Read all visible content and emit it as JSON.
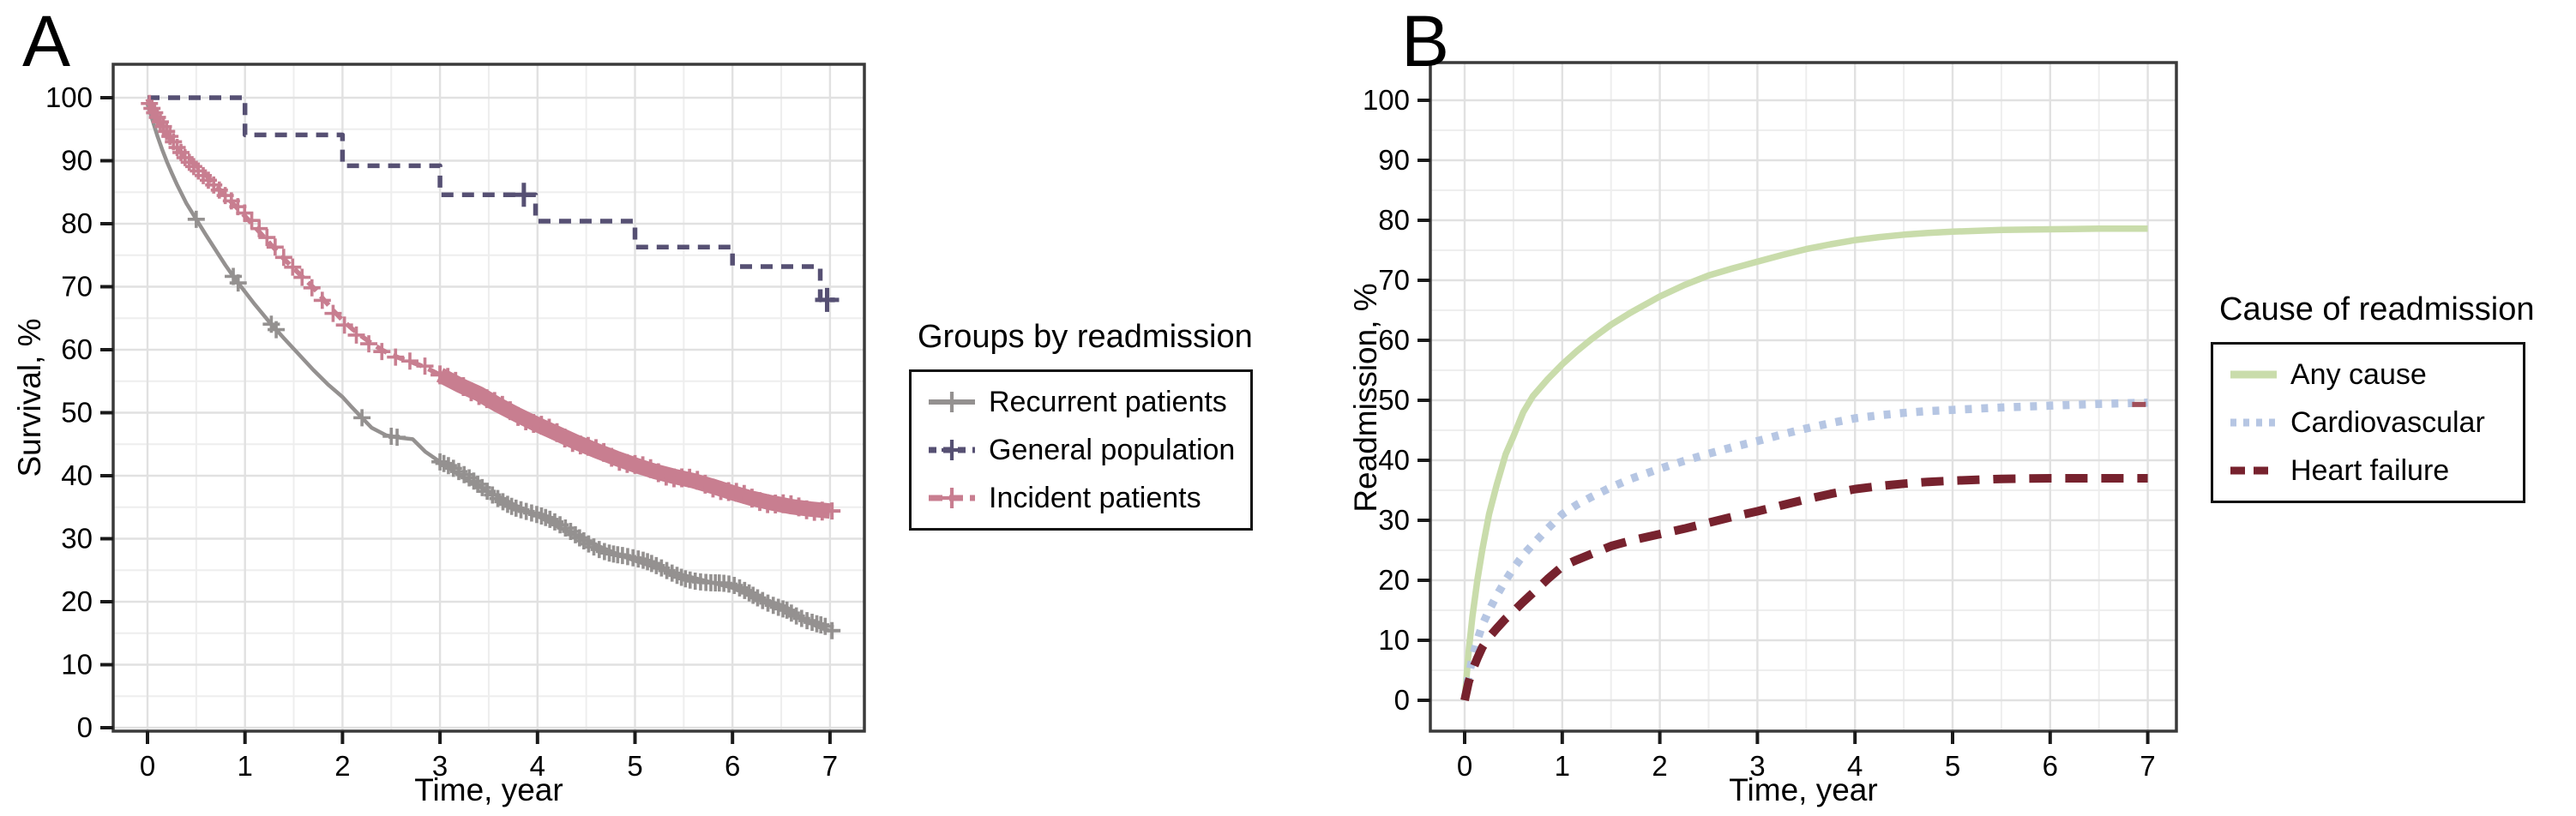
{
  "chart_data": [
    {
      "type": "line",
      "panel_label": "A",
      "title": "",
      "xlabel": "Time, year",
      "ylabel": "Survival, %",
      "xticks": [
        0,
        1,
        2,
        3,
        4,
        5,
        6,
        7
      ],
      "yticks": [
        0,
        10,
        20,
        30,
        40,
        50,
        60,
        70,
        80,
        90,
        100
      ],
      "xlim": [
        -0.35,
        7.35
      ],
      "ylim": [
        -0.5,
        105.5
      ],
      "grid": {
        "major": true,
        "minor": true,
        "minor_x_step": 0.5,
        "minor_y_step": 5
      },
      "legend": {
        "title": "Groups by readmission",
        "position": "right"
      },
      "series": [
        {
          "name": "Recurrent patients",
          "color": "#949190",
          "line_style": "solid",
          "line_width": 4.5,
          "dash_pattern": "",
          "swatch_dash": "",
          "marker": "plus",
          "step": false,
          "points": [
            [
              0,
              99
            ],
            [
              0.05,
              96.5
            ],
            [
              0.1,
              94
            ],
            [
              0.15,
              91.8
            ],
            [
              0.2,
              89.8
            ],
            [
              0.25,
              88
            ],
            [
              0.3,
              86.3
            ],
            [
              0.4,
              83.2
            ],
            [
              0.5,
              80.7
            ],
            [
              0.6,
              78.2
            ],
            [
              0.7,
              75.8
            ],
            [
              0.8,
              73.4
            ],
            [
              0.9,
              71.2
            ],
            [
              1,
              69.2
            ],
            [
              1.1,
              67.2
            ],
            [
              1.25,
              64.4
            ],
            [
              1.4,
              61.8
            ],
            [
              1.55,
              59.3
            ],
            [
              1.7,
              56.8
            ],
            [
              1.85,
              54.5
            ],
            [
              2,
              52.5
            ],
            [
              2.1,
              50.8
            ],
            [
              2.2,
              49.2
            ],
            [
              2.3,
              47.6
            ],
            [
              2.45,
              46.4
            ],
            [
              2.6,
              46
            ],
            [
              2.72,
              45.8
            ],
            [
              2.85,
              43.8
            ],
            [
              3,
              42.2
            ],
            [
              3.2,
              40.1
            ],
            [
              3.4,
              38.3
            ],
            [
              3.6,
              36.7
            ],
            [
              3.8,
              35.1
            ],
            [
              4,
              33.6
            ],
            [
              4.2,
              32
            ],
            [
              4.4,
              30.5
            ],
            [
              4.6,
              29
            ],
            [
              4.8,
              27.7
            ],
            [
              5,
              26.5
            ],
            [
              5.2,
              25.5
            ],
            [
              5.4,
              24.6
            ],
            [
              5.6,
              23.8
            ],
            [
              5.8,
              23
            ],
            [
              6,
              22.2
            ],
            [
              6.15,
              21.2
            ],
            [
              6.3,
              20.4
            ],
            [
              6.45,
              19.7
            ],
            [
              6.55,
              19.2
            ],
            [
              6.65,
              18
            ],
            [
              6.75,
              17
            ],
            [
              6.85,
              16.2
            ],
            [
              6.95,
              15.6
            ],
            [
              7,
              15.4
            ]
          ],
          "censor_marks": [
            0.5,
            0.88,
            0.93,
            1.27,
            1.32,
            2.2,
            2.5,
            2.56
          ],
          "censor_band": {
            "from": 3.0,
            "to": 6.98,
            "step": 0.04
          },
          "tail_mark": 7.02
        },
        {
          "name": "General population",
          "color": "#565073",
          "line_style": "dashed",
          "line_width": 5.5,
          "dash_pattern": "14 10",
          "swatch_dash": "9 8",
          "marker": "plus",
          "step": true,
          "points": [
            [
              0,
              100
            ],
            [
              1,
              94.1
            ],
            [
              2,
              89.2
            ],
            [
              3,
              84.6
            ],
            [
              3.98,
              80.4
            ],
            [
              5,
              76.3
            ],
            [
              6,
              73.2
            ],
            [
              6.9,
              67.9
            ],
            [
              7.05,
              67.9
            ]
          ],
          "censor_marks": [
            3.86,
            6.97
          ]
        },
        {
          "name": "Incident patients",
          "color": "#c87e90",
          "line_style": "dashed-then-thick",
          "line_width": 5.5,
          "thick_width": 18,
          "thick_from_x": 3,
          "dash_pattern": "14 8",
          "swatch_dash": "16 8",
          "marker": "plus",
          "step": false,
          "points": [
            [
              0,
              99.8
            ],
            [
              0.05,
              98
            ],
            [
              0.1,
              96.5
            ],
            [
              0.15,
              95.2
            ],
            [
              0.2,
              94.1
            ],
            [
              0.25,
              93.1
            ],
            [
              0.3,
              92.1
            ],
            [
              0.4,
              90.5
            ],
            [
              0.5,
              89.2
            ],
            [
              0.6,
              87.7
            ],
            [
              0.7,
              86.1
            ],
            [
              0.8,
              84.4
            ],
            [
              0.9,
              82.8
            ],
            [
              1,
              81.2
            ],
            [
              1.1,
              79.5
            ],
            [
              1.2,
              77.8
            ],
            [
              1.3,
              76.1
            ],
            [
              1.4,
              74.4
            ],
            [
              1.5,
              72.9
            ],
            [
              1.6,
              71.4
            ],
            [
              1.7,
              69.9
            ],
            [
              1.8,
              68.1
            ],
            [
              1.9,
              66.3
            ],
            [
              2,
              64.7
            ],
            [
              2.1,
              63.3
            ],
            [
              2.2,
              62.1
            ],
            [
              2.3,
              61
            ],
            [
              2.4,
              60
            ],
            [
              2.5,
              59.2
            ],
            [
              2.6,
              58.6
            ],
            [
              2.7,
              58.1
            ],
            [
              2.8,
              57.5
            ],
            [
              2.9,
              56.8
            ],
            [
              3,
              56
            ],
            [
              3.2,
              54.4
            ],
            [
              3.4,
              53
            ],
            [
              3.6,
              51.2
            ],
            [
              3.8,
              49.6
            ],
            [
              4,
              48.1
            ],
            [
              4.2,
              46.7
            ],
            [
              4.4,
              45.3
            ],
            [
              4.6,
              44
            ],
            [
              4.8,
              42.8
            ],
            [
              5,
              41.7
            ],
            [
              5.2,
              40.7
            ],
            [
              5.4,
              39.9
            ],
            [
              5.6,
              39.2
            ],
            [
              5.8,
              38.3
            ],
            [
              6,
              37.3
            ],
            [
              6.2,
              36.4
            ],
            [
              6.4,
              35.7
            ],
            [
              6.6,
              35.1
            ],
            [
              6.8,
              34.7
            ],
            [
              7,
              34.4
            ]
          ],
          "censor_band": {
            "from": 0.02,
            "to": 2.95,
            "step": 0.025,
            "accel": 0.048
          },
          "band_edge_marks": {
            "from": 3.0,
            "to": 6.95,
            "step": 0.08
          },
          "tail_mark": 7.02
        }
      ]
    },
    {
      "type": "line",
      "panel_label": "B",
      "title": "",
      "xlabel": "Time, year",
      "ylabel": "Readmission, %",
      "xticks": [
        0,
        1,
        2,
        3,
        4,
        5,
        6,
        7
      ],
      "yticks": [
        0,
        10,
        20,
        30,
        40,
        50,
        60,
        70,
        80,
        90,
        100
      ],
      "xlim": [
        -0.35,
        7.3
      ],
      "ylim": [
        -5.1,
        106.3
      ],
      "grid": {
        "major": true,
        "minor": true,
        "minor_x_step": 0.5,
        "minor_y_step": 5
      },
      "legend": {
        "title": "Cause of readmission",
        "position": "right"
      },
      "series": [
        {
          "name": "Any cause",
          "color": "#c9dcab",
          "line_style": "solid",
          "line_width": 7.5,
          "dash_pattern": "",
          "swatch_dash": "",
          "marker": "none",
          "step": false,
          "points": [
            [
              0,
              0
            ],
            [
              0.04,
              8
            ],
            [
              0.08,
              14
            ],
            [
              0.13,
              20
            ],
            [
              0.18,
              25
            ],
            [
              0.25,
              31
            ],
            [
              0.33,
              36
            ],
            [
              0.42,
              41
            ],
            [
              0.5,
              44
            ],
            [
              0.6,
              48
            ],
            [
              0.7,
              50.7
            ],
            [
              0.85,
              53.5
            ],
            [
              1,
              56
            ],
            [
              1.15,
              58.2
            ],
            [
              1.3,
              60.2
            ],
            [
              1.5,
              62.6
            ],
            [
              1.7,
              64.6
            ],
            [
              2,
              67.3
            ],
            [
              2.25,
              69.2
            ],
            [
              2.5,
              70.8
            ],
            [
              2.75,
              72
            ],
            [
              3,
              73.1
            ],
            [
              3.25,
              74.2
            ],
            [
              3.5,
              75.2
            ],
            [
              3.75,
              76
            ],
            [
              4,
              76.7
            ],
            [
              4.25,
              77.2
            ],
            [
              4.5,
              77.6
            ],
            [
              4.75,
              77.9
            ],
            [
              5,
              78.1
            ],
            [
              5.5,
              78.4
            ],
            [
              6,
              78.5
            ],
            [
              6.5,
              78.6
            ],
            [
              7,
              78.6
            ]
          ]
        },
        {
          "name": "Cardiovascular",
          "color": "#b6c6e3",
          "line_style": "dotted",
          "line_width": 9.5,
          "dash_pattern": "8 11",
          "swatch_dash": "7 8",
          "marker": "none",
          "step": false,
          "points": [
            [
              0,
              0
            ],
            [
              0.04,
              4
            ],
            [
              0.08,
              7
            ],
            [
              0.13,
              10
            ],
            [
              0.18,
              12.5
            ],
            [
              0.25,
              15
            ],
            [
              0.33,
              17.5
            ],
            [
              0.42,
              20
            ],
            [
              0.5,
              22
            ],
            [
              0.6,
              24.2
            ],
            [
              0.7,
              26
            ],
            [
              0.85,
              28.6
            ],
            [
              1,
              31
            ],
            [
              1.15,
              32.6
            ],
            [
              1.3,
              33.9
            ],
            [
              1.5,
              35.5
            ],
            [
              1.7,
              36.9
            ],
            [
              2,
              38.6
            ],
            [
              2.25,
              39.9
            ],
            [
              2.5,
              41.1
            ],
            [
              2.75,
              42.2
            ],
            [
              3,
              43.2
            ],
            [
              3.25,
              44.3
            ],
            [
              3.5,
              45.3
            ],
            [
              3.75,
              46.2
            ],
            [
              4,
              47
            ],
            [
              4.25,
              47.5
            ],
            [
              4.5,
              47.9
            ],
            [
              4.75,
              48.2
            ],
            [
              5,
              48.4
            ],
            [
              5.5,
              48.8
            ],
            [
              6,
              49.1
            ],
            [
              6.5,
              49.4
            ],
            [
              7,
              49.6
            ]
          ]
        },
        {
          "name": "Heart failure",
          "color": "#77222e",
          "line_style": "dashed",
          "line_width": 10,
          "dash_pattern": "26 16",
          "swatch_dash": "17 10",
          "marker": "none",
          "step": false,
          "points": [
            [
              0,
              0
            ],
            [
              0.04,
              3
            ],
            [
              0.08,
              5
            ],
            [
              0.13,
              7
            ],
            [
              0.18,
              8.8
            ],
            [
              0.25,
              10.5
            ],
            [
              0.33,
              12
            ],
            [
              0.42,
              13.6
            ],
            [
              0.5,
              14.8
            ],
            [
              0.6,
              16.4
            ],
            [
              0.7,
              17.9
            ],
            [
              0.85,
              20.2
            ],
            [
              1,
              22.3
            ],
            [
              1.15,
              23.4
            ],
            [
              1.3,
              24.4
            ],
            [
              1.5,
              25.7
            ],
            [
              1.7,
              26.6
            ],
            [
              2,
              27.7
            ],
            [
              2.25,
              28.6
            ],
            [
              2.5,
              29.6
            ],
            [
              2.75,
              30.6
            ],
            [
              3,
              31.5
            ],
            [
              3.25,
              32.5
            ],
            [
              3.5,
              33.5
            ],
            [
              3.75,
              34.4
            ],
            [
              4,
              35.2
            ],
            [
              4.25,
              35.7
            ],
            [
              4.5,
              36.1
            ],
            [
              4.75,
              36.4
            ],
            [
              5,
              36.6
            ],
            [
              5.5,
              36.9
            ],
            [
              6,
              37
            ],
            [
              6.5,
              37
            ],
            [
              7,
              37
            ]
          ]
        }
      ],
      "annotations": [
        {
          "type": "end-tick",
          "x_from": 6.84,
          "x_to": 6.98,
          "y": 49.3,
          "color": "#a04e59"
        }
      ]
    }
  ],
  "style": {
    "grid_major_color": "#e1e1e1",
    "grid_minor_color": "#eeeeee",
    "border_color": "#3a3a3a",
    "tick_color": "#1a1a1a",
    "text_color": "#000000",
    "background": "#ffffff"
  }
}
